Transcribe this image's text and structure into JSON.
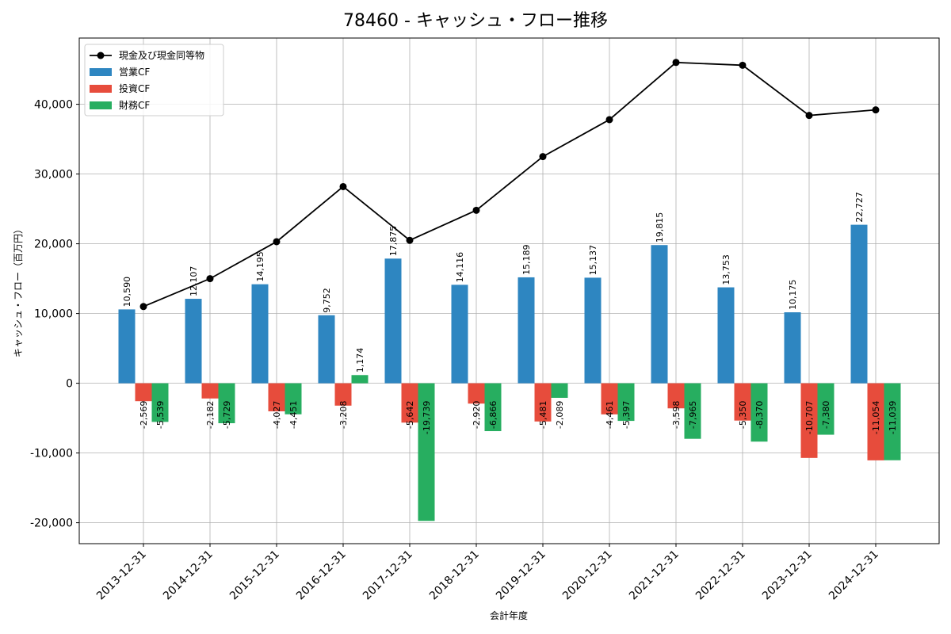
{
  "chart_data": {
    "type": "bar",
    "title": "78460 - キャッシュ・フロー推移",
    "xlabel": "会計年度",
    "ylabel": "キャッシュ・フロー（百万円）",
    "ylim": [
      -23000,
      49500
    ],
    "yticks": [
      -20000,
      -10000,
      0,
      10000,
      20000,
      30000,
      40000
    ],
    "ytick_labels": [
      "-20,000",
      "-10,000",
      "0",
      "10,000",
      "20,000",
      "30,000",
      "40,000"
    ],
    "grid": true,
    "legend_position": "top-left",
    "categories": [
      "2013-12-31",
      "2014-12-31",
      "2015-12-31",
      "2016-12-31",
      "2017-12-31",
      "2018-12-31",
      "2019-12-31",
      "2020-12-31",
      "2021-12-31",
      "2022-12-31",
      "2023-12-31",
      "2024-12-31"
    ],
    "series": [
      {
        "name": "営業CF",
        "kind": "bar",
        "color": "#2e86c1",
        "values": [
          10590,
          12107,
          14195,
          9752,
          17875,
          14116,
          15189,
          15137,
          19815,
          13753,
          10175,
          22727
        ],
        "labels": [
          "10,590",
          "12,107",
          "14,195",
          "9,752",
          "17,875",
          "14,116",
          "15,189",
          "15,137",
          "19,815",
          "13,753",
          "10,175",
          "22,727"
        ]
      },
      {
        "name": "投資CF",
        "kind": "bar",
        "color": "#e74c3c",
        "values": [
          -2569,
          -2182,
          -4027,
          -3208,
          -5642,
          -2920,
          -5481,
          -4461,
          -3598,
          -5350,
          -10707,
          -11054
        ],
        "labels": [
          "-2,569",
          "-2,182",
          "-4,027",
          "-3,208",
          "-5,642",
          "-2,920",
          "-5,481",
          "-4,461",
          "-3,598",
          "-5,350",
          "-10,707",
          "-11,054"
        ]
      },
      {
        "name": "財務CF",
        "kind": "bar",
        "color": "#27ae60",
        "values": [
          -5539,
          -5729,
          -4451,
          1174,
          -19739,
          -6866,
          -2089,
          -5397,
          -7965,
          -8370,
          -7380,
          -11039
        ],
        "labels": [
          "-5,539",
          "-5,729",
          "-4,451",
          "1,174",
          "-19,739",
          "-6,866",
          "-2,089",
          "-5,397",
          "-7,965",
          "-8,370",
          "-7,380",
          "-11,039"
        ]
      },
      {
        "name": "現金及び現金同等物",
        "kind": "line",
        "color": "#000000",
        "values": [
          11000,
          15000,
          20300,
          28200,
          20500,
          24800,
          32500,
          37800,
          46000,
          45600,
          38400,
          39200
        ]
      }
    ]
  }
}
